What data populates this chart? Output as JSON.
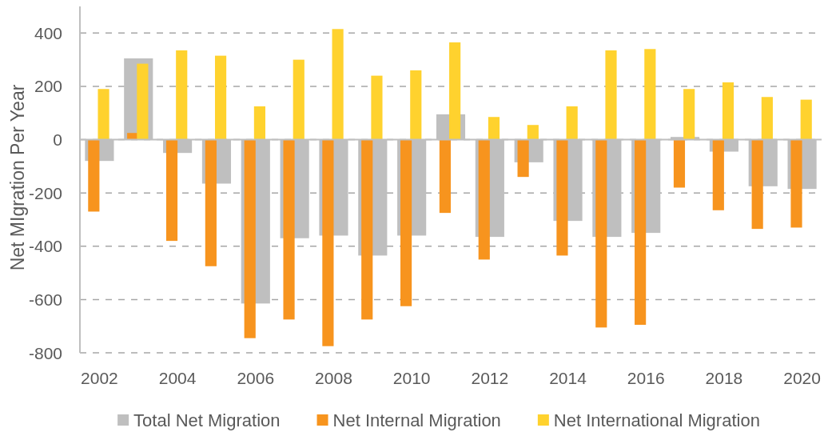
{
  "chart_data": {
    "type": "bar",
    "ylabel": "Net MIgration Per Year",
    "categories": [
      "2002",
      null,
      "2004",
      null,
      "2006",
      null,
      "2008",
      null,
      "2010",
      null,
      "2012",
      null,
      "2014",
      null,
      "2016",
      null,
      "2018",
      null,
      "2020"
    ],
    "series": [
      {
        "name": "Total Net Migration",
        "color": "#bfbfbf",
        "values": [
          -80,
          305,
          -50,
          -165,
          -615,
          -370,
          -360,
          -435,
          -360,
          95,
          -365,
          -85,
          -305,
          -365,
          -350,
          10,
          -45,
          -175,
          -185
        ]
      },
      {
        "name": "Net Internal Migration",
        "color": "#f7941e",
        "values": [
          -270,
          25,
          -380,
          -475,
          -745,
          -675,
          -775,
          -675,
          -625,
          -275,
          -450,
          -140,
          -435,
          -705,
          -695,
          -180,
          -265,
          -335,
          -330
        ]
      },
      {
        "name": "Net International Migration",
        "color": "#ffd22e",
        "values": [
          190,
          285,
          335,
          315,
          125,
          300,
          415,
          240,
          260,
          365,
          85,
          55,
          125,
          335,
          340,
          190,
          215,
          160,
          150
        ]
      }
    ],
    "ylim": [
      -800,
      500
    ],
    "yticks": [
      -800,
      -600,
      -400,
      -200,
      0,
      200,
      400
    ],
    "grid": "y",
    "legend": "bottom"
  }
}
